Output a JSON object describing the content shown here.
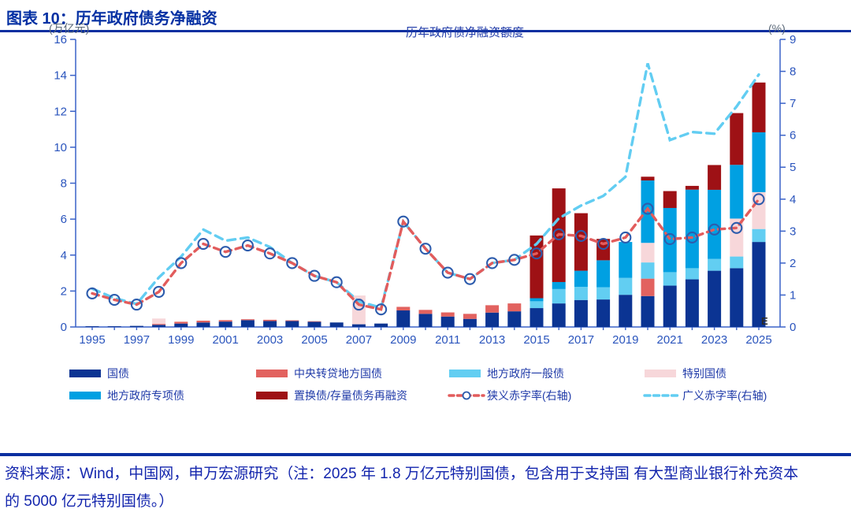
{
  "header": {
    "title": "图表 10：历年政府债务净融资"
  },
  "footer": {
    "source_line1": "资料来源：Wind，中国网，申万宏源研究（注：2025 年 1.8 万亿元特别国债，包含用于支持国",
    "source_line2": "有大型商业银行补充资本的 5000 亿元特别国债。）"
  },
  "chart_data": {
    "type": "bar",
    "subtype": "stacked-bar-with-lines",
    "title": "历年政府债净融资额度",
    "left_axis": {
      "label": "(万亿元)",
      "min": 0,
      "max": 16,
      "step": 2
    },
    "right_axis": {
      "label": "(%)",
      "min": 0,
      "max": 9,
      "step": 1
    },
    "grid": false,
    "x_tick_labels": [
      1995,
      1997,
      1999,
      2001,
      2003,
      2005,
      2007,
      2009,
      2011,
      2013,
      2015,
      2017,
      2019,
      2021,
      2023,
      2025
    ],
    "years": [
      1995,
      1996,
      1997,
      1998,
      1999,
      2000,
      2001,
      2002,
      2003,
      2004,
      2005,
      2006,
      2007,
      2008,
      2009,
      2010,
      2011,
      2012,
      2013,
      2014,
      2015,
      2016,
      2017,
      2018,
      2019,
      2020,
      2021,
      2022,
      2023,
      2024,
      2025
    ],
    "bar_series": [
      {
        "name": "国债",
        "color": "#0b3493",
        "values": [
          0.04,
          0.04,
          0.06,
          0.12,
          0.19,
          0.25,
          0.3,
          0.38,
          0.33,
          0.33,
          0.29,
          0.25,
          0.15,
          0.19,
          0.92,
          0.73,
          0.58,
          0.45,
          0.8,
          0.87,
          1.05,
          1.31,
          1.5,
          1.53,
          1.79,
          1.72,
          2.3,
          2.65,
          3.13,
          3.27,
          4.73
        ]
      },
      {
        "name": "中央转贷地方国债",
        "color": "#e2625f",
        "values": [
          0,
          0,
          0,
          0.05,
          0.1,
          0.1,
          0.08,
          0.05,
          0.07,
          0.04,
          0.03,
          0,
          0,
          0,
          0.2,
          0.22,
          0.23,
          0.28,
          0.41,
          0.44,
          0,
          0,
          0,
          0,
          0,
          0.97,
          0,
          0,
          0,
          0,
          0
        ]
      },
      {
        "name": "地方政府一般债",
        "color": "#62cef2",
        "values": [
          0,
          0,
          0,
          0,
          0,
          0,
          0,
          0,
          0,
          0,
          0,
          0,
          0,
          0,
          0,
          0,
          0,
          0,
          0,
          0,
          0.38,
          0.8,
          0.73,
          0.68,
          0.94,
          0.9,
          0.75,
          0.62,
          0.66,
          0.65,
          0.72
        ]
      },
      {
        "name": "特别国债",
        "color": "#f7d7da",
        "values": [
          0,
          0,
          0,
          0.3,
          0,
          0,
          0,
          0,
          0,
          0,
          0,
          0,
          1.6,
          0,
          0,
          0,
          0,
          0,
          0,
          0,
          0,
          0,
          0,
          0,
          0,
          1.09,
          0,
          0,
          0,
          2.11,
          2.05
        ]
      },
      {
        "name": "地方政府专项债",
        "color": "#00a0e2",
        "values": [
          0,
          0,
          0,
          0,
          0,
          0,
          0,
          0,
          0,
          0,
          0,
          0,
          0,
          0,
          0,
          0,
          0,
          0,
          0,
          0,
          0.17,
          0.39,
          0.9,
          1.5,
          2.0,
          3.47,
          3.57,
          4.37,
          3.84,
          2.99,
          3.33
        ]
      },
      {
        "name": "置换债/存量债务再融资",
        "color": "#9e1115",
        "values": [
          0,
          0,
          0,
          0,
          0,
          0,
          0,
          0,
          0,
          0,
          0,
          0,
          0,
          0,
          0,
          0,
          0,
          0,
          0,
          0,
          3.49,
          5.21,
          3.2,
          1.19,
          0,
          0.21,
          0.94,
          0.21,
          1.38,
          2.88,
          2.77
        ]
      }
    ],
    "line_series": [
      {
        "name": "狭义赤字率(右轴)",
        "color": "#e25c5c",
        "marker": "circle",
        "marker_color": "#2d5cad",
        "axis": "right",
        "style": "dashed",
        "values": [
          1.05,
          0.85,
          0.7,
          1.1,
          2.0,
          2.6,
          2.35,
          2.55,
          2.3,
          2.0,
          1.6,
          1.4,
          0.7,
          0.55,
          3.3,
          2.45,
          1.7,
          1.5,
          2.0,
          2.1,
          2.3,
          2.9,
          2.85,
          2.6,
          2.8,
          3.7,
          2.75,
          2.8,
          3.05,
          3.1,
          4.0
        ]
      },
      {
        "name": "广义赤字率(右轴)",
        "color": "#62cdf2",
        "marker": "none",
        "axis": "right",
        "style": "dashed",
        "values": [
          1.2,
          0.9,
          0.72,
          1.55,
          2.2,
          3.05,
          2.7,
          2.8,
          2.5,
          2.0,
          1.6,
          1.4,
          0.8,
          0.6,
          3.3,
          2.45,
          1.7,
          1.5,
          2.0,
          2.1,
          2.6,
          3.4,
          3.8,
          4.1,
          4.7,
          8.25,
          5.85,
          6.1,
          6.05,
          6.9,
          7.9
        ]
      }
    ],
    "legend_position": "bottom",
    "annotation": {
      "text": "E",
      "year": 2025
    },
    "colors": {
      "axis": "#3a62c8",
      "tick_label": "#2b55bd",
      "legend_text": "#1f3aa8",
      "inner_title": "#1f3aa8",
      "unit_label": "#5a6878",
      "annotation": "#2a2a2a"
    }
  }
}
